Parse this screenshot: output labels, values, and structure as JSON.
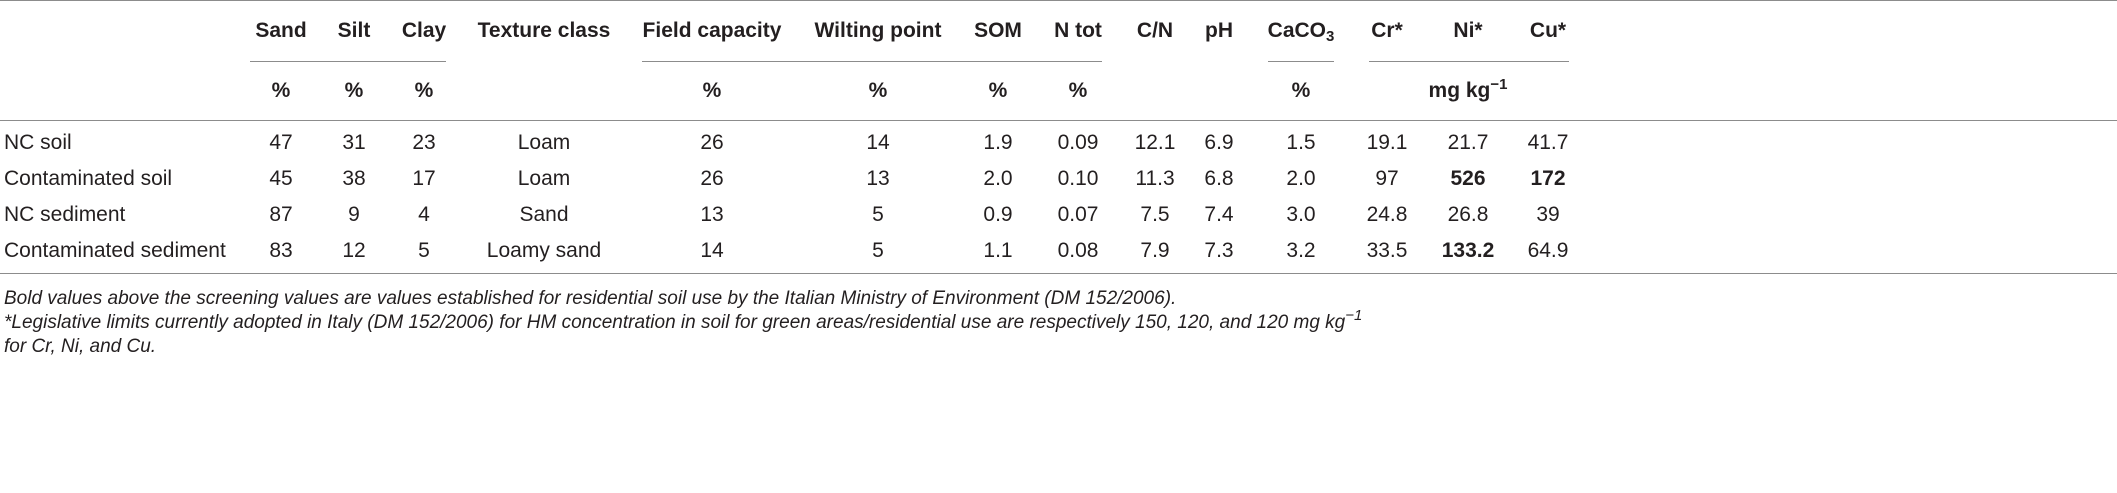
{
  "table": {
    "headers": {
      "row_label": "",
      "sand": "Sand",
      "silt": "Silt",
      "clay": "Clay",
      "texture": "Texture class",
      "field_capacity": "Field capacity",
      "wilting_point": "Wilting point",
      "som": "SOM",
      "n_tot": "N tot",
      "cn": "C/N",
      "ph": "pH",
      "caco3_main": "CaCO",
      "caco3_sub": "3",
      "cr": "Cr*",
      "ni": "Ni*",
      "cu": "Cu*"
    },
    "units": {
      "sand": "%",
      "silt": "%",
      "clay": "%",
      "field_capacity": "%",
      "wilting_point": "%",
      "som": "%",
      "n_tot": "%",
      "caco3": "%",
      "metals_main": "mg kg",
      "metals_sup": "−1"
    },
    "rows": [
      {
        "label": "NC soil",
        "sand": "47",
        "silt": "31",
        "clay": "23",
        "texture": "Loam",
        "field_capacity": "26",
        "wilting_point": "14",
        "som": "1.9",
        "n_tot": "0.09",
        "cn": "12.1",
        "ph": "6.9",
        "caco3": "1.5",
        "cr": "19.1",
        "ni": "21.7",
        "cu": "41.7"
      },
      {
        "label": "Contaminated soil",
        "sand": "45",
        "silt": "38",
        "clay": "17",
        "texture": "Loam",
        "field_capacity": "26",
        "wilting_point": "13",
        "som": "2.0",
        "n_tot": "0.10",
        "cn": "11.3",
        "ph": "6.8",
        "caco3": "2.0",
        "cr": "97",
        "ni": "526",
        "cu": "172"
      },
      {
        "label": "NC sediment",
        "sand": "87",
        "silt": "9",
        "clay": "4",
        "texture": "Sand",
        "field_capacity": "13",
        "wilting_point": "5",
        "som": "0.9",
        "n_tot": "0.07",
        "cn": "7.5",
        "ph": "7.4",
        "caco3": "3.0",
        "cr": "24.8",
        "ni": "26.8",
        "cu": "39"
      },
      {
        "label": "Contaminated sediment",
        "sand": "83",
        "silt": "12",
        "clay": "5",
        "texture": "Loamy sand",
        "field_capacity": "14",
        "wilting_point": "5",
        "som": "1.1",
        "n_tot": "0.08",
        "cn": "7.9",
        "ph": "7.3",
        "caco3": "3.2",
        "cr": "33.5",
        "ni": "133.2",
        "cu": "64.9"
      }
    ],
    "bold_cells": [
      "1.ni",
      "1.cu",
      "3.ni"
    ]
  },
  "footnotes": {
    "line1": "Bold values above the screening values are values established for residential soil use by the Italian Ministry of Environment (DM 152/2006).",
    "line2_main": "*Legislative limits currently adopted in Italy (DM 152/2006) for HM concentration in soil for green areas/residential use are respectively 150, 120, and 120 mg kg",
    "line2_sup": "−1",
    "line3": "for Cr, Ni, and Cu."
  }
}
